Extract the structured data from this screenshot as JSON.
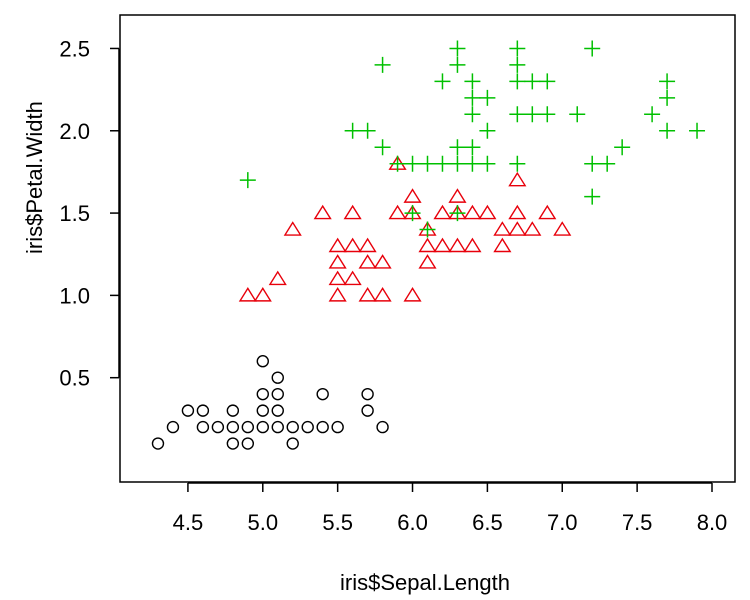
{
  "chart_data": {
    "type": "scatter",
    "title": "",
    "xlabel": "iris$Sepal.Length",
    "ylabel": "iris$Petal.Width",
    "xlim": [
      4.2,
      8.0
    ],
    "ylim": [
      0.0,
      2.6
    ],
    "x_ticks": [
      "4.5",
      "5.0",
      "5.5",
      "6.0",
      "6.5",
      "7.0",
      "7.5",
      "8.0"
    ],
    "y_ticks": [
      "0.5",
      "1.0",
      "1.5",
      "2.0",
      "2.5"
    ],
    "grid": false,
    "legend": "none",
    "series": [
      {
        "marker": "circle",
        "color": "#000000",
        "points": [
          [
            4.3,
            0.1
          ],
          [
            4.4,
            0.2
          ],
          [
            4.5,
            0.3
          ],
          [
            4.6,
            0.2
          ],
          [
            4.6,
            0.3
          ],
          [
            4.7,
            0.2
          ],
          [
            4.8,
            0.1
          ],
          [
            4.8,
            0.2
          ],
          [
            4.8,
            0.3
          ],
          [
            4.9,
            0.1
          ],
          [
            4.9,
            0.2
          ],
          [
            5.0,
            0.2
          ],
          [
            5.0,
            0.3
          ],
          [
            5.0,
            0.4
          ],
          [
            5.0,
            0.6
          ],
          [
            5.1,
            0.2
          ],
          [
            5.1,
            0.3
          ],
          [
            5.1,
            0.4
          ],
          [
            5.1,
            0.5
          ],
          [
            5.2,
            0.1
          ],
          [
            5.2,
            0.2
          ],
          [
            5.3,
            0.2
          ],
          [
            5.4,
            0.2
          ],
          [
            5.4,
            0.4
          ],
          [
            5.5,
            0.2
          ],
          [
            5.7,
            0.3
          ],
          [
            5.7,
            0.4
          ],
          [
            5.8,
            0.2
          ]
        ]
      },
      {
        "marker": "triangle",
        "color": "#e8000b",
        "points": [
          [
            4.9,
            1.0
          ],
          [
            5.0,
            1.0
          ],
          [
            5.1,
            1.1
          ],
          [
            5.2,
            1.4
          ],
          [
            5.4,
            1.5
          ],
          [
            5.5,
            1.0
          ],
          [
            5.5,
            1.1
          ],
          [
            5.5,
            1.2
          ],
          [
            5.5,
            1.3
          ],
          [
            5.6,
            1.1
          ],
          [
            5.6,
            1.3
          ],
          [
            5.6,
            1.5
          ],
          [
            5.7,
            1.0
          ],
          [
            5.7,
            1.2
          ],
          [
            5.7,
            1.3
          ],
          [
            5.8,
            1.0
          ],
          [
            5.8,
            1.2
          ],
          [
            5.9,
            1.5
          ],
          [
            5.9,
            1.8
          ],
          [
            6.0,
            1.0
          ],
          [
            6.0,
            1.5
          ],
          [
            6.0,
            1.6
          ],
          [
            6.1,
            1.2
          ],
          [
            6.1,
            1.3
          ],
          [
            6.1,
            1.4
          ],
          [
            6.2,
            1.3
          ],
          [
            6.2,
            1.5
          ],
          [
            6.3,
            1.3
          ],
          [
            6.3,
            1.5
          ],
          [
            6.3,
            1.6
          ],
          [
            6.4,
            1.3
          ],
          [
            6.4,
            1.5
          ],
          [
            6.5,
            1.5
          ],
          [
            6.6,
            1.3
          ],
          [
            6.6,
            1.4
          ],
          [
            6.7,
            1.4
          ],
          [
            6.7,
            1.5
          ],
          [
            6.7,
            1.7
          ],
          [
            6.8,
            1.4
          ],
          [
            6.9,
            1.5
          ],
          [
            7.0,
            1.4
          ]
        ]
      },
      {
        "marker": "plus",
        "color": "#00c000",
        "points": [
          [
            4.9,
            1.7
          ],
          [
            5.6,
            2.0
          ],
          [
            5.7,
            2.0
          ],
          [
            5.8,
            1.9
          ],
          [
            5.8,
            2.4
          ],
          [
            5.9,
            1.8
          ],
          [
            6.0,
            1.5
          ],
          [
            6.0,
            1.8
          ],
          [
            6.1,
            1.4
          ],
          [
            6.1,
            1.8
          ],
          [
            6.2,
            1.8
          ],
          [
            6.2,
            2.3
          ],
          [
            6.3,
            1.5
          ],
          [
            6.3,
            1.8
          ],
          [
            6.3,
            1.9
          ],
          [
            6.3,
            2.4
          ],
          [
            6.3,
            2.5
          ],
          [
            6.4,
            1.8
          ],
          [
            6.4,
            1.9
          ],
          [
            6.4,
            2.1
          ],
          [
            6.4,
            2.2
          ],
          [
            6.4,
            2.3
          ],
          [
            6.5,
            1.8
          ],
          [
            6.5,
            2.0
          ],
          [
            6.5,
            2.2
          ],
          [
            6.7,
            1.8
          ],
          [
            6.7,
            2.1
          ],
          [
            6.7,
            2.3
          ],
          [
            6.7,
            2.4
          ],
          [
            6.7,
            2.5
          ],
          [
            6.8,
            2.1
          ],
          [
            6.8,
            2.3
          ],
          [
            6.9,
            2.1
          ],
          [
            6.9,
            2.3
          ],
          [
            7.1,
            2.1
          ],
          [
            7.2,
            1.6
          ],
          [
            7.2,
            1.8
          ],
          [
            7.2,
            2.5
          ],
          [
            7.3,
            1.8
          ],
          [
            7.4,
            1.9
          ],
          [
            7.6,
            2.1
          ],
          [
            7.7,
            2.0
          ],
          [
            7.7,
            2.2
          ],
          [
            7.7,
            2.3
          ],
          [
            7.9,
            2.0
          ]
        ]
      }
    ]
  }
}
